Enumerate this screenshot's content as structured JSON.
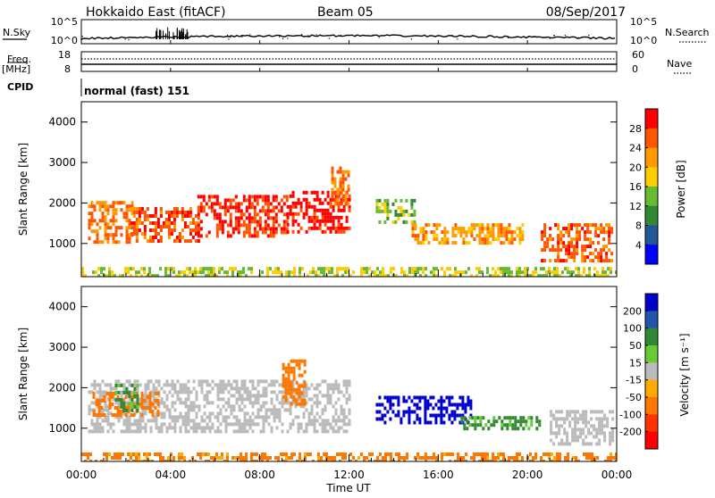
{
  "header": {
    "radar_title": "Hokkaido East (fitACF)",
    "beam_label": "Beam 05",
    "date_label": "08/Sep/2017"
  },
  "noise_panel": {
    "left_label": "N.Sky",
    "right_label": "N.Search",
    "left_ticks": [
      "10^5",
      "10^0"
    ],
    "right_ticks": [
      "10^5",
      "10^0"
    ]
  },
  "freq_panel": {
    "left_label": "Freq.",
    "left_unit": "[MHz]",
    "right_label": "Nave",
    "left_ticks": [
      "18",
      "8"
    ],
    "right_ticks": [
      "60",
      "0"
    ]
  },
  "cpid_panel": {
    "label": "CPID",
    "mode_text": "normal (fast) 151"
  },
  "chart_data": [
    {
      "type": "heatmap",
      "name": "power",
      "ylabel": "Slant Range [km]",
      "yticks": [
        "4000",
        "3000",
        "2000",
        "1000"
      ],
      "xlim": [
        "00:00",
        "24:00"
      ],
      "ylim": [
        180,
        4500
      ],
      "colorbar": {
        "label": "Power [dB]",
        "ticks": [
          "28",
          "24",
          "20",
          "16",
          "12",
          "8",
          "4"
        ],
        "colors": [
          "#ff0000",
          "#ff5500",
          "#ff9900",
          "#ffcc00",
          "#66bb33",
          "#338833",
          "#225599",
          "#0000ff"
        ]
      },
      "regions": [
        {
          "t": [
            0.3,
            2.3
          ],
          "r": [
            1050,
            2050
          ],
          "value": 22
        },
        {
          "t": [
            2.2,
            5.3
          ],
          "r": [
            1100,
            1900
          ],
          "value": 24
        },
        {
          "t": [
            5.2,
            9.2
          ],
          "r": [
            1200,
            2200
          ],
          "value": 26
        },
        {
          "t": [
            9.2,
            12.0
          ],
          "r": [
            1250,
            2300
          ],
          "value": 28
        },
        {
          "t": [
            11.2,
            12.0
          ],
          "r": [
            2000,
            2900
          ],
          "value": 22
        },
        {
          "t": [
            13.2,
            15.0
          ],
          "r": [
            1500,
            2100
          ],
          "value": 12
        },
        {
          "t": [
            14.8,
            19.8
          ],
          "r": [
            1000,
            1500
          ],
          "value": 20
        },
        {
          "t": [
            20.6,
            23.8
          ],
          "r": [
            550,
            1500
          ],
          "value": 24
        },
        {
          "t": [
            0.0,
            24.0
          ],
          "r": [
            190,
            420
          ],
          "value": 14
        }
      ]
    },
    {
      "type": "heatmap",
      "name": "velocity",
      "ylabel": "Slant Range [km]",
      "xlabel": "Time UT",
      "xticks": [
        "00:00",
        "04:00",
        "08:00",
        "12:00",
        "16:00",
        "20:00",
        "00:00"
      ],
      "yticks": [
        "4000",
        "3000",
        "2000",
        "1000"
      ],
      "xlim": [
        "00:00",
        "24:00"
      ],
      "ylim": [
        180,
        4500
      ],
      "colorbar": {
        "label": "Velocity [m s⁻¹]",
        "ticks": [
          "200",
          "100",
          "50",
          "15",
          "-15",
          "-50",
          "-100",
          "-200"
        ],
        "colors": [
          "#0000cc",
          "#2255aa",
          "#338833",
          "#66cc33",
          "#bbbbbb",
          "#ffaa00",
          "#ff7700",
          "#ff3300",
          "#ff0000"
        ]
      },
      "regions": [
        {
          "t": [
            0.3,
            12.0
          ],
          "r": [
            950,
            2200
          ],
          "value": 0
        },
        {
          "t": [
            0.5,
            3.5
          ],
          "r": [
            1300,
            1900
          ],
          "value": -60
        },
        {
          "t": [
            9.0,
            10.0
          ],
          "r": [
            1600,
            2700
          ],
          "value": -60
        },
        {
          "t": [
            1.5,
            2.5
          ],
          "r": [
            1400,
            2100
          ],
          "value": 40
        },
        {
          "t": [
            13.2,
            17.5
          ],
          "r": [
            1100,
            1800
          ],
          "value": 220
        },
        {
          "t": [
            17.0,
            20.5
          ],
          "r": [
            950,
            1300
          ],
          "value": 40
        },
        {
          "t": [
            21.0,
            23.8
          ],
          "r": [
            650,
            1450
          ],
          "value": 0
        },
        {
          "t": [
            0.0,
            24.0
          ],
          "r": [
            190,
            400
          ],
          "value": -40
        }
      ]
    }
  ]
}
